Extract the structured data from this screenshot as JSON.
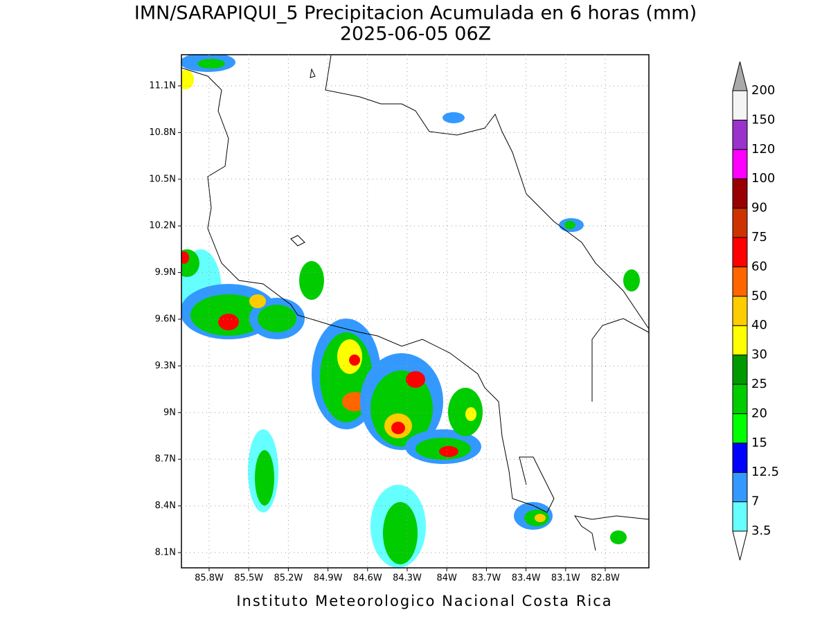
{
  "header": {
    "title": "IMN/SARAPIQUI_5 Precipitacion Acumulada en 6 horas (mm)",
    "subtitle": "2025-06-05 06Z"
  },
  "map": {
    "lat_labels": [
      "11.1N",
      "10.8N",
      "10.5N",
      "10.2N",
      "9.9N",
      "9.6N",
      "9.3N",
      "9N",
      "8.7N",
      "8.4N",
      "8.1N"
    ],
    "lon_labels": [
      "85.8W",
      "85.5W",
      "85.2W",
      "84.9W",
      "84.6W",
      "84.3W",
      "84W",
      "83.7W",
      "83.4W",
      "83.1W",
      "82.8W"
    ]
  },
  "colorbar": {
    "levels": [
      3.5,
      7,
      12.5,
      15,
      20,
      25,
      30,
      40,
      50,
      60,
      75,
      90,
      100,
      120,
      150,
      200
    ],
    "colors": [
      "#66ffff",
      "#3399ff",
      "#0000ff",
      "#00ff00",
      "#00cc00",
      "#009900",
      "#ffff00",
      "#ffcc00",
      "#ff6600",
      "#ff0000",
      "#cc3300",
      "#990000",
      "#ff00ff",
      "#9933cc",
      "#f5f5f5"
    ],
    "under_color": "#ffffff",
    "over_color": "#aaaaaa"
  },
  "footer": "Instituto Meteorologico Nacional Costa Rica"
}
